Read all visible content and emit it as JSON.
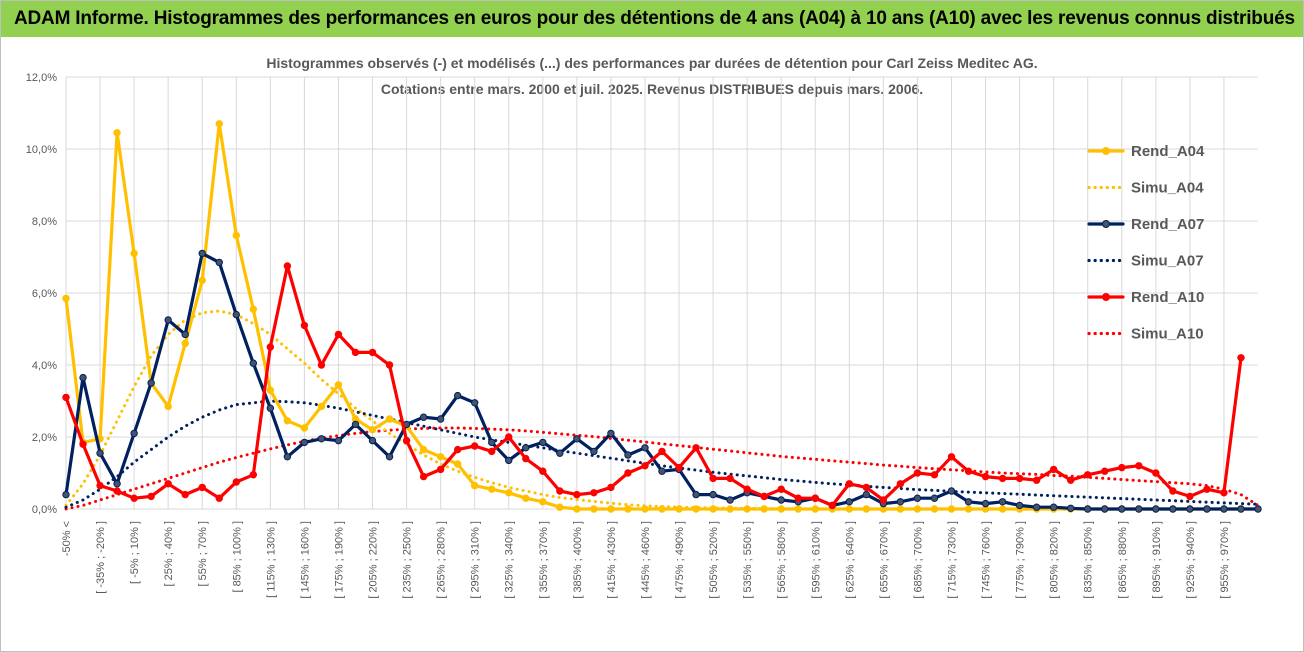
{
  "header": {
    "title": "ADAM Informe. Histogrammes des performances en euros pour des détentions de 4 ans (A04) à 10 ans (A10) avec les revenus connus distribués"
  },
  "colors": {
    "header_bg": "#92d050",
    "A04": "#ffc000",
    "A07": "#002060",
    "A10": "#ff0000",
    "grid": "#d9d9d9",
    "text": "#595959"
  },
  "chart_data": {
    "type": "line",
    "title": "Histogrammes observés (-) et modélisés (...) des performances par durées de détention pour Carl Zeiss Meditec AG.",
    "subtitle": "Cotations entre mars. 2000 et juil. 2025. Revenus DISTRIBUES depuis mars. 2006.",
    "ylim": [
      0,
      12
    ],
    "y_ticks": [
      "0,0%",
      "2,0%",
      "4,0%",
      "6,0%",
      "8,0%",
      "10,0%",
      "12,0%"
    ],
    "grid": true,
    "legend_position": "right",
    "x_labels": [
      "-50% <",
      "[ -35% ; -20% ]",
      "[ -5% ; 10% ]",
      "[ 25% ; 40% ]",
      "[ 55% ; 70% ]",
      "[ 85% ; 100% ]",
      "[ 115% ; 130% ]",
      "[ 145% ; 160% ]",
      "[ 175% ; 190% ]",
      "[ 205% ; 220% ]",
      "[ 235% ; 250% ]",
      "[ 265% ; 280% ]",
      "[ 295% ; 310% ]",
      "[ 325% ; 340% ]",
      "[ 355% ; 370% ]",
      "[ 385% ; 400% ]",
      "[ 415% ; 430% ]",
      "[ 445% ; 460% ]",
      "[ 475% ; 490% ]",
      "[ 505% ; 520% ]",
      "[ 535% ; 550% ]",
      "[ 565% ; 580% ]",
      "[ 595% ; 610% ]",
      "[ 625% ; 640% ]",
      "[ 655% ; 670% ]",
      "[ 685% ; 700% ]",
      "[ 715% ; 730% ]",
      "[ 745% ; 760% ]",
      "[ 775% ; 790% ]",
      "[ 805% ; 820% ]",
      "[ 835% ; 850% ]",
      "[ 865% ; 880% ]",
      "[ 895% ; 910% ]",
      "[ 925% ; 940% ]",
      "[ 955% ; 970% ]"
    ],
    "series": [
      {
        "name": "Rend_A04",
        "style": "solid",
        "color": "#ffc000",
        "values": [
          5.85,
          1.85,
          1.95,
          10.45,
          7.1,
          3.5,
          2.85,
          4.6,
          6.35,
          10.7,
          7.6,
          5.55,
          3.3,
          2.45,
          2.25,
          2.85,
          3.45,
          2.5,
          2.2,
          2.5,
          2.3,
          1.65,
          1.45,
          1.25,
          0.65,
          0.55,
          0.45,
          0.3,
          0.2,
          0.05,
          0,
          0,
          0,
          0,
          0,
          0,
          0,
          0,
          0,
          0,
          0,
          0,
          0,
          0,
          0,
          0,
          0,
          0,
          0,
          0,
          0,
          0,
          0,
          0,
          0,
          0,
          0,
          0,
          0,
          0,
          0,
          0,
          0,
          0,
          0,
          0,
          0,
          0,
          0,
          0,
          0
        ]
      },
      {
        "name": "Simu_A04",
        "style": "dotted",
        "color": "#ffc000",
        "values": [
          0.1,
          0.7,
          1.5,
          2.45,
          3.4,
          4.25,
          4.85,
          5.25,
          5.45,
          5.5,
          5.4,
          5.15,
          4.85,
          4.45,
          4.05,
          3.6,
          3.2,
          2.8,
          2.45,
          2.1,
          1.8,
          1.5,
          1.25,
          1.05,
          0.88,
          0.73,
          0.6,
          0.5,
          0.4,
          0.32,
          0.26,
          0.21,
          0.16,
          0.12,
          0.09,
          0.07,
          0.05,
          0.04,
          0.03,
          0.02,
          0.02,
          0.01,
          0.01,
          0,
          0,
          0,
          0,
          0,
          0,
          0,
          0,
          0,
          0,
          0,
          0,
          0,
          0,
          0,
          0,
          0,
          0,
          0,
          0,
          0,
          0,
          0,
          0,
          0,
          0,
          0,
          0
        ]
      },
      {
        "name": "Rend_A07",
        "style": "solid",
        "color": "#002060",
        "values": [
          0.4,
          3.65,
          1.55,
          0.7,
          2.1,
          3.5,
          5.25,
          4.85,
          7.1,
          6.85,
          5.4,
          4.05,
          2.8,
          1.45,
          1.85,
          1.95,
          1.9,
          2.35,
          1.9,
          1.45,
          2.35,
          2.55,
          2.5,
          3.15,
          2.95,
          1.85,
          1.35,
          1.7,
          1.85,
          1.55,
          1.95,
          1.6,
          2.1,
          1.5,
          1.7,
          1.05,
          1.1,
          0.4,
          0.4,
          0.25,
          0.45,
          0.35,
          0.25,
          0.2,
          0.3,
          0.1,
          0.2,
          0.4,
          0.15,
          0.2,
          0.3,
          0.3,
          0.5,
          0.2,
          0.15,
          0.2,
          0.1,
          0.05,
          0.05,
          0.02,
          0,
          0,
          0,
          0,
          0,
          0,
          0,
          0,
          0,
          0,
          0
        ]
      },
      {
        "name": "Simu_A07",
        "style": "dotted",
        "color": "#002060",
        "values": [
          0.05,
          0.25,
          0.55,
          0.9,
          1.3,
          1.65,
          2.0,
          2.3,
          2.55,
          2.75,
          2.9,
          2.95,
          3.0,
          2.98,
          2.95,
          2.88,
          2.8,
          2.7,
          2.6,
          2.5,
          2.4,
          2.3,
          2.2,
          2.1,
          2.0,
          1.92,
          1.85,
          1.77,
          1.7,
          1.62,
          1.55,
          1.48,
          1.41,
          1.34,
          1.27,
          1.2,
          1.14,
          1.08,
          1.02,
          0.97,
          0.92,
          0.87,
          0.82,
          0.78,
          0.74,
          0.7,
          0.67,
          0.63,
          0.6,
          0.57,
          0.54,
          0.52,
          0.49,
          0.47,
          0.45,
          0.43,
          0.41,
          0.39,
          0.37,
          0.35,
          0.33,
          0.31,
          0.29,
          0.27,
          0.25,
          0.23,
          0.21,
          0.19,
          0.17,
          0.15,
          0.13
        ]
      },
      {
        "name": "Rend_A10",
        "style": "solid",
        "color": "#ff0000",
        "values": [
          3.1,
          1.8,
          0.65,
          0.5,
          0.3,
          0.35,
          0.7,
          0.4,
          0.6,
          0.3,
          0.75,
          0.95,
          4.5,
          6.75,
          5.1,
          4.0,
          4.85,
          4.35,
          4.35,
          4.0,
          1.9,
          0.9,
          1.1,
          1.65,
          1.75,
          1.6,
          2.0,
          1.4,
          1.05,
          0.5,
          0.4,
          0.45,
          0.6,
          1.0,
          1.2,
          1.6,
          1.15,
          1.7,
          0.85,
          0.85,
          0.55,
          0.35,
          0.55,
          0.3,
          0.3,
          0.1,
          0.7,
          0.6,
          0.25,
          0.7,
          1.0,
          0.95,
          1.45,
          1.05,
          0.9,
          0.85,
          0.85,
          0.8,
          1.1,
          0.8,
          0.95,
          1.05,
          1.15,
          1.2,
          1.0,
          0.5,
          0.35,
          0.55,
          0.45,
          4.2
        ]
      },
      {
        "name": "Simu_A10",
        "style": "dotted",
        "color": "#ff0000",
        "values": [
          0,
          0.1,
          0.25,
          0.4,
          0.55,
          0.7,
          0.85,
          1.0,
          1.15,
          1.3,
          1.43,
          1.55,
          1.67,
          1.78,
          1.88,
          1.97,
          2.04,
          2.1,
          2.15,
          2.19,
          2.22,
          2.24,
          2.25,
          2.25,
          2.24,
          2.22,
          2.2,
          2.17,
          2.13,
          2.09,
          2.05,
          2.01,
          1.96,
          1.91,
          1.86,
          1.81,
          1.76,
          1.71,
          1.66,
          1.61,
          1.56,
          1.51,
          1.46,
          1.42,
          1.38,
          1.34,
          1.3,
          1.26,
          1.22,
          1.19,
          1.15,
          1.12,
          1.09,
          1.06,
          1.03,
          1.0,
          0.98,
          0.96,
          0.93,
          0.91,
          0.88,
          0.85,
          0.82,
          0.79,
          0.76,
          0.73,
          0.7,
          0.65,
          0.55,
          0.4,
          0.1
        ]
      }
    ]
  }
}
